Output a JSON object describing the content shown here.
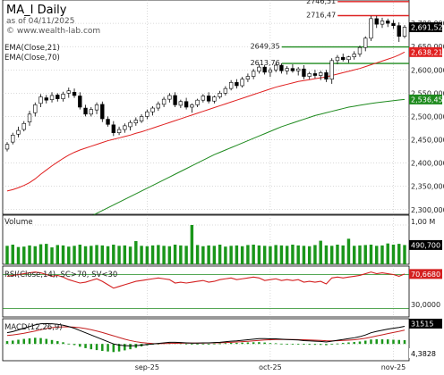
{
  "header": {
    "symbol": "MA_I Daily",
    "asof": "as of 04/11/2025",
    "source": "© www.wealth-lab.com"
  },
  "colors": {
    "ema21": "#e02020",
    "ema70": "#1e8a1e",
    "up_candle": "#ffffff",
    "down_candle": "#000000",
    "volume": "#1a961a",
    "rsi": "#d42020",
    "macd": "#000000",
    "macd_signal": "#c41e1e",
    "macd_hist": "#1a961a",
    "grid": "#b4b4b4",
    "label_box": "#444444"
  },
  "chart_data": [
    {
      "type": "candlestick",
      "title": "MA_I Daily",
      "indicators": [
        "EMA(Close,21)",
        "EMA(Close,70)"
      ],
      "y_ticks": [
        2300000,
        2350000,
        2400000,
        2450000,
        2500000,
        2550000,
        2600000,
        2650000,
        2700000
      ],
      "y_tick_labels": [
        "2,300,000",
        "2,350,000",
        "2,400,000",
        "2,450,000",
        "2,500,000",
        "2,550,000",
        "2,600,000",
        "2,650,000",
        "2,700,000"
      ],
      "ylim": [
        2290000,
        2750000
      ],
      "x_labels": [
        {
          "label": "sep-25",
          "bar": 25
        },
        {
          "label": "oct-25",
          "bar": 47
        },
        {
          "label": "nov-25",
          "bar": 69
        }
      ],
      "levels": [
        {
          "label": "2746,51",
          "value": 2746510,
          "color": "#dd2222",
          "from_bar": 60
        },
        {
          "label": "2716,47",
          "value": 2716470,
          "color": "#dd2222",
          "from_bar": 60
        },
        {
          "label": "2649,35",
          "value": 2649350,
          "color": "#1e8a1e",
          "from_bar": 50
        },
        {
          "label": "2613,76",
          "value": 2613760,
          "color": "#1e8a1e",
          "from_bar": 50
        }
      ],
      "last_labels": [
        {
          "label": "2,691,520",
          "value": 2691520,
          "bg": "#000000",
          "fg": "#ffffff"
        },
        {
          "label": "2,638,21",
          "value": 2638210,
          "bg": "#e02020",
          "fg": "#ffffff"
        },
        {
          "label": "2,536,453",
          "value": 2536453,
          "bg": "#1e8a1e",
          "fg": "#ffffff"
        }
      ],
      "candles": [
        [
          2430000,
          2445000,
          2425000,
          2440000
        ],
        [
          2445000,
          2465000,
          2440000,
          2460000
        ],
        [
          2462000,
          2478000,
          2455000,
          2470000
        ],
        [
          2472000,
          2490000,
          2468000,
          2485000
        ],
        [
          2488000,
          2512000,
          2480000,
          2505000
        ],
        [
          2508000,
          2530000,
          2500000,
          2525000
        ],
        [
          2528000,
          2548000,
          2520000,
          2542000
        ],
        [
          2540000,
          2546000,
          2528000,
          2535000
        ],
        [
          2536000,
          2552000,
          2530000,
          2545000
        ],
        [
          2546000,
          2550000,
          2532000,
          2538000
        ],
        [
          2538000,
          2553000,
          2532000,
          2548000
        ],
        [
          2550000,
          2562000,
          2540000,
          2555000
        ],
        [
          2552000,
          2560000,
          2540000,
          2545000
        ],
        [
          2544000,
          2552000,
          2515000,
          2520000
        ],
        [
          2518000,
          2525000,
          2500000,
          2505000
        ],
        [
          2505000,
          2520000,
          2500000,
          2515000
        ],
        [
          2514000,
          2530000,
          2505000,
          2525000
        ],
        [
          2526000,
          2532000,
          2488000,
          2495000
        ],
        [
          2494000,
          2500000,
          2478000,
          2483000
        ],
        [
          2482000,
          2490000,
          2458000,
          2465000
        ],
        [
          2465000,
          2478000,
          2460000,
          2472000
        ],
        [
          2472000,
          2485000,
          2465000,
          2480000
        ],
        [
          2478000,
          2492000,
          2470000,
          2487000
        ],
        [
          2486000,
          2498000,
          2480000,
          2492000
        ],
        [
          2490000,
          2505000,
          2486000,
          2500000
        ],
        [
          2500000,
          2515000,
          2494000,
          2510000
        ],
        [
          2510000,
          2522000,
          2502000,
          2518000
        ],
        [
          2518000,
          2532000,
          2512000,
          2527000
        ],
        [
          2526000,
          2542000,
          2520000,
          2537000
        ],
        [
          2537000,
          2550000,
          2530000,
          2545000
        ],
        [
          2545000,
          2552000,
          2520000,
          2525000
        ],
        [
          2524000,
          2536000,
          2518000,
          2532000
        ],
        [
          2532000,
          2540000,
          2515000,
          2520000
        ],
        [
          2520000,
          2528000,
          2508000,
          2525000
        ],
        [
          2525000,
          2538000,
          2520000,
          2535000
        ],
        [
          2535000,
          2548000,
          2530000,
          2544000
        ],
        [
          2544000,
          2552000,
          2528000,
          2533000
        ],
        [
          2533000,
          2545000,
          2528000,
          2542000
        ],
        [
          2542000,
          2555000,
          2538000,
          2550000
        ],
        [
          2550000,
          2565000,
          2545000,
          2560000
        ],
        [
          2560000,
          2578000,
          2556000,
          2573000
        ],
        [
          2573000,
          2580000,
          2560000,
          2566000
        ],
        [
          2566000,
          2585000,
          2562000,
          2580000
        ],
        [
          2580000,
          2592000,
          2574000,
          2586000
        ],
        [
          2586000,
          2602000,
          2580000,
          2597000
        ],
        [
          2597000,
          2612000,
          2592000,
          2606000
        ],
        [
          2606000,
          2610000,
          2590000,
          2595000
        ],
        [
          2595000,
          2605000,
          2585000,
          2600000
        ],
        [
          2600000,
          2615000,
          2595000,
          2610000
        ],
        [
          2610000,
          2614000,
          2592000,
          2598000
        ],
        [
          2598000,
          2608000,
          2590000,
          2603000
        ],
        [
          2603000,
          2612000,
          2594000,
          2598000
        ],
        [
          2598000,
          2606000,
          2588000,
          2602000
        ],
        [
          2602000,
          2610000,
          2580000,
          2586000
        ],
        [
          2586000,
          2596000,
          2580000,
          2592000
        ],
        [
          2592000,
          2600000,
          2582000,
          2588000
        ],
        [
          2588000,
          2598000,
          2578000,
          2594000
        ],
        [
          2594000,
          2600000,
          2574000,
          2580000
        ],
        [
          2580000,
          2625000,
          2570000,
          2620000
        ],
        [
          2620000,
          2632000,
          2612000,
          2627000
        ],
        [
          2627000,
          2635000,
          2618000,
          2622000
        ],
        [
          2622000,
          2630000,
          2615000,
          2628000
        ],
        [
          2628000,
          2640000,
          2622000,
          2634000
        ],
        [
          2634000,
          2652000,
          2628000,
          2648000
        ],
        [
          2648000,
          2672000,
          2640000,
          2668000
        ],
        [
          2668000,
          2716000,
          2662000,
          2710000
        ],
        [
          2710000,
          2716000,
          2690000,
          2698000
        ],
        [
          2698000,
          2712000,
          2690000,
          2705000
        ],
        [
          2705000,
          2710000,
          2692000,
          2700000
        ],
        [
          2700000,
          2707000,
          2688000,
          2695000
        ],
        [
          2695000,
          2702000,
          2660000,
          2672000
        ],
        [
          2672000,
          2696000,
          2668000,
          2691520
        ]
      ],
      "ema21": [
        2340000,
        2343000,
        2347000,
        2352000,
        2358000,
        2366000,
        2376000,
        2385000,
        2394000,
        2402000,
        2410000,
        2417000,
        2423000,
        2428000,
        2432000,
        2436000,
        2440000,
        2444000,
        2448000,
        2451000,
        2454000,
        2457000,
        2460000,
        2464000,
        2467000,
        2471000,
        2475000,
        2479000,
        2483000,
        2487000,
        2491000,
        2495000,
        2499000,
        2503000,
        2507000,
        2511000,
        2515000,
        2519000,
        2523000,
        2527000,
        2531000,
        2535000,
        2539000,
        2543000,
        2547000,
        2551000,
        2555000,
        2559000,
        2563000,
        2566000,
        2569000,
        2572000,
        2575000,
        2577000,
        2579000,
        2581000,
        2583000,
        2585000,
        2588000,
        2591000,
        2594000,
        2597000,
        2600000,
        2603000,
        2607000,
        2611000,
        2615000,
        2619000,
        2623000,
        2627000,
        2632000,
        2638210
      ],
      "ema70": [
        2200000,
        2205000,
        2210000,
        2215000,
        2220000,
        2226000,
        2232000,
        2238000,
        2244000,
        2250000,
        2256000,
        2262000,
        2268000,
        2274000,
        2280000,
        2286000,
        2292000,
        2298000,
        2304000,
        2310000,
        2316000,
        2322000,
        2328000,
        2334000,
        2340000,
        2346000,
        2352000,
        2358000,
        2364000,
        2370000,
        2376000,
        2382000,
        2388000,
        2394000,
        2400000,
        2406000,
        2412000,
        2418000,
        2423000,
        2428000,
        2433000,
        2438000,
        2443000,
        2448000,
        2453000,
        2458000,
        2463000,
        2468000,
        2473000,
        2478000,
        2482000,
        2486000,
        2490000,
        2494000,
        2498000,
        2502000,
        2505000,
        2508000,
        2511000,
        2514000,
        2517000,
        2520000,
        2522000,
        2524000,
        2526000,
        2528000,
        2529500,
        2531000,
        2532500,
        2534000,
        2535300,
        2536453
      ]
    },
    {
      "type": "bar",
      "title": "Volume",
      "y_tick_labels": [
        "1,00 M"
      ],
      "ymax": 1000000,
      "last_value_label": "490,700",
      "values": [
        470000,
        500000,
        440000,
        450000,
        480000,
        460000,
        510000,
        520000,
        430000,
        490000,
        480000,
        450000,
        470000,
        500000,
        460000,
        470000,
        490000,
        480000,
        460000,
        500000,
        470000,
        480000,
        450000,
        590000,
        470000,
        460000,
        480000,
        490000,
        470000,
        460000,
        500000,
        480000,
        470000,
        1000000,
        490000,
        460000,
        480000,
        470000,
        500000,
        450000,
        470000,
        480000,
        460000,
        490000,
        500000,
        480000,
        470000,
        460000,
        490000,
        480000,
        470000,
        500000,
        480000,
        470000,
        460000,
        490000,
        600000,
        480000,
        470000,
        500000,
        480000,
        650000,
        470000,
        480000,
        490000,
        500000,
        470000,
        480000,
        530000,
        500000,
        520000,
        490700
      ]
    },
    {
      "type": "line",
      "title": "RSI(Close,14), SC>70, SV<30",
      "y_tick_labels": [
        "70,6680",
        "30,0000"
      ],
      "ylim": [
        20,
        80
      ],
      "last_value_label": "70,6680",
      "values": [
        68,
        69,
        70,
        71,
        72,
        73,
        72,
        70,
        68,
        69,
        67,
        64,
        62,
        60,
        61,
        63,
        65,
        62,
        58,
        54,
        56,
        58,
        60,
        62,
        63,
        64,
        65,
        66,
        65,
        64,
        60,
        61,
        60,
        61,
        62,
        63,
        61,
        62,
        64,
        65,
        66,
        64,
        65,
        66,
        67,
        66,
        63,
        64,
        65,
        63,
        64,
        63,
        64,
        61,
        62,
        61,
        62,
        59,
        66,
        67,
        66,
        67,
        68,
        69,
        71,
        73,
        71,
        72,
        71,
        70,
        68,
        70.668
      ]
    },
    {
      "type": "line",
      "title": "MACD(12,26,9)",
      "y_tick_labels": [
        "31515",
        "4,3828"
      ],
      "last_value_labels": [
        "31515",
        "4,3828"
      ],
      "ylim": [
        -30000,
        45000
      ],
      "macd": [
        20000,
        22000,
        25000,
        28000,
        31000,
        34000,
        36000,
        36500,
        36000,
        35000,
        33500,
        31000,
        28000,
        24000,
        20000,
        16000,
        12000,
        8000,
        4000,
        0,
        -2000,
        -3000,
        -3500,
        -3000,
        -2000,
        -1000,
        0,
        1000,
        2000,
        3000,
        3000,
        2500,
        2000,
        1500,
        1500,
        2000,
        2000,
        2500,
        3000,
        4000,
        5000,
        5500,
        6500,
        7500,
        8500,
        9500,
        9500,
        9000,
        9000,
        8500,
        8000,
        7500,
        7000,
        6000,
        5500,
        5000,
        4500,
        3500,
        5000,
        6500,
        8000,
        9500,
        11000,
        13000,
        16000,
        20000,
        22500,
        24500,
        26500,
        28000,
        29500,
        31515
      ],
      "signal": [
        15000,
        16000,
        17500,
        19000,
        21000,
        23000,
        25500,
        27500,
        29000,
        30000,
        30500,
        30500,
        30000,
        29000,
        27500,
        25500,
        23000,
        20500,
        17500,
        14500,
        11500,
        8500,
        6000,
        4000,
        2500,
        1500,
        800,
        600,
        700,
        900,
        1200,
        1400,
        1500,
        1500,
        1500,
        1600,
        1700,
        1900,
        2100,
        2500,
        3000,
        3500,
        4100,
        4800,
        5500,
        6300,
        7000,
        7500,
        7800,
        8000,
        8000,
        7900,
        7700,
        7400,
        7000,
        6600,
        6200,
        5700,
        5600,
        5800,
        6200,
        6800,
        7600,
        8700,
        10100,
        12100,
        14200,
        16300,
        18400,
        20500,
        22400,
        24700
      ]
    }
  ]
}
